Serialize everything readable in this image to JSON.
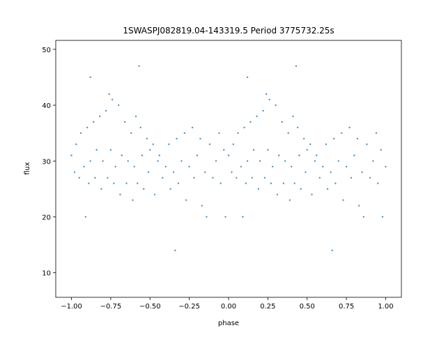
{
  "chart_data": {
    "type": "scatter",
    "title": "1SWASPJ082819.04-143319.5 Period 3775732.25s",
    "x_label": "phase",
    "y_label": "flux",
    "color": "#1f77b4",
    "x": [
      -1.0,
      -0.98,
      -0.97,
      -0.95,
      -0.94,
      -0.92,
      -0.91,
      -0.9,
      -0.89,
      -0.88,
      -0.86,
      -0.85,
      -0.84,
      -0.82,
      -0.81,
      -0.8,
      -0.78,
      -0.77,
      -0.76,
      -0.75,
      -0.74,
      -0.73,
      -0.72,
      -0.7,
      -0.69,
      -0.68,
      -0.66,
      -0.65,
      -0.64,
      -0.62,
      -0.61,
      -0.6,
      -0.59,
      -0.58,
      -0.56,
      -0.55,
      -0.54,
      -0.52,
      -0.51,
      -0.5,
      -0.48,
      -0.47,
      -0.45,
      -0.44,
      -0.42,
      -0.4,
      -0.38,
      -0.37,
      -0.35,
      -0.33,
      -0.32,
      -0.3,
      -0.28,
      -0.27,
      -0.25,
      -0.23,
      -0.22,
      -0.2,
      -0.18,
      -0.17,
      -0.15,
      -0.14,
      -0.12,
      -0.1,
      -0.08,
      -0.06,
      -0.05,
      -0.03,
      -0.02,
      -0.57,
      -0.34,
      -0.88,
      0.0,
      0.02,
      0.03,
      0.05,
      0.06,
      0.08,
      0.09,
      0.1,
      0.11,
      0.12,
      0.14,
      0.15,
      0.16,
      0.18,
      0.19,
      0.2,
      0.22,
      0.23,
      0.24,
      0.25,
      0.26,
      0.27,
      0.28,
      0.3,
      0.31,
      0.32,
      0.34,
      0.35,
      0.36,
      0.38,
      0.39,
      0.4,
      0.41,
      0.42,
      0.44,
      0.45,
      0.46,
      0.48,
      0.49,
      0.5,
      0.52,
      0.53,
      0.55,
      0.56,
      0.58,
      0.6,
      0.62,
      0.63,
      0.65,
      0.67,
      0.68,
      0.7,
      0.72,
      0.73,
      0.75,
      0.77,
      0.78,
      0.8,
      0.82,
      0.83,
      0.85,
      0.86,
      0.88,
      0.9,
      0.92,
      0.94,
      0.95,
      0.97,
      0.98,
      1.0,
      0.43,
      0.66,
      0.12
    ],
    "values": [
      31,
      28,
      33,
      27,
      35,
      29,
      20,
      36,
      26,
      30,
      37,
      27,
      32,
      38,
      25,
      30,
      39,
      27,
      42,
      32,
      41,
      26,
      29,
      40,
      24,
      31,
      37,
      26,
      30,
      35,
      23,
      29,
      38,
      26,
      36,
      31,
      25,
      34,
      28,
      32,
      33,
      24,
      30,
      31,
      27,
      29,
      33,
      25,
      28,
      34,
      26,
      30,
      35,
      23,
      29,
      36,
      27,
      31,
      34,
      22,
      28,
      20,
      33,
      27,
      30,
      35,
      26,
      32,
      20,
      47,
      14,
      45,
      31,
      28,
      33,
      27,
      35,
      29,
      20,
      36,
      26,
      30,
      37,
      27,
      32,
      38,
      25,
      30,
      39,
      27,
      42,
      32,
      41,
      26,
      29,
      40,
      24,
      31,
      37,
      26,
      30,
      35,
      23,
      29,
      38,
      26,
      36,
      31,
      25,
      34,
      28,
      32,
      33,
      24,
      30,
      31,
      27,
      29,
      33,
      25,
      28,
      34,
      26,
      30,
      35,
      23,
      29,
      36,
      27,
      31,
      34,
      22,
      28,
      20,
      33,
      27,
      30,
      35,
      26,
      32,
      20,
      29,
      47,
      14,
      45
    ],
    "xlim": [
      -1.1,
      1.1
    ],
    "ylim": [
      5.6,
      51.6
    ],
    "xticks": [
      {
        "value": -1,
        "label": "−1.00"
      },
      {
        "value": -0.75,
        "label": "−0.75"
      },
      {
        "value": -0.5,
        "label": "−0.50"
      },
      {
        "value": -0.25,
        "label": "−0.25"
      },
      {
        "value": 0,
        "label": "0.00"
      },
      {
        "value": 0.25,
        "label": "0.25"
      },
      {
        "value": 0.5,
        "label": "0.50"
      },
      {
        "value": 0.75,
        "label": "0.75"
      },
      {
        "value": 1,
        "label": "1.00"
      }
    ],
    "yticks": [
      10,
      20,
      30,
      40,
      50
    ]
  }
}
